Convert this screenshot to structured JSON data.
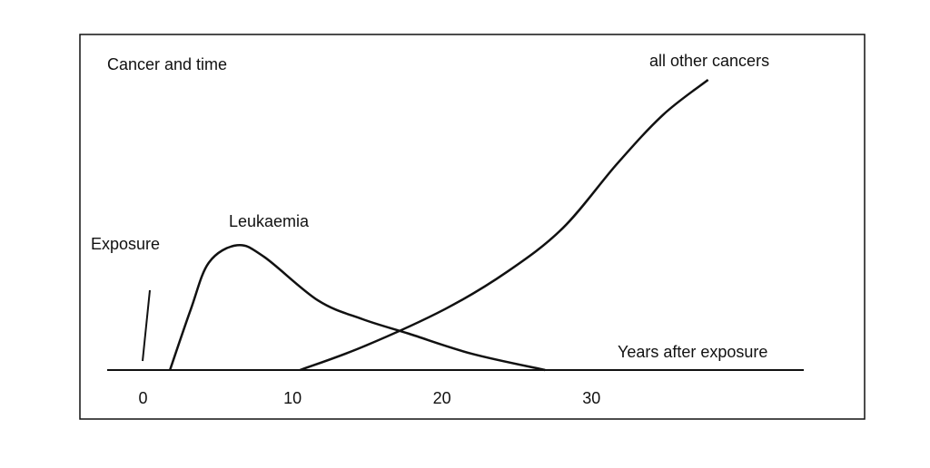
{
  "chart_data": {
    "type": "line",
    "title": "Cancer and time",
    "x_label": "Years after exposure",
    "annotations": [
      "Exposure"
    ],
    "xlim": [
      -2.4,
      44.2
    ],
    "xticks": [
      0,
      10,
      20,
      30
    ],
    "ylim": [
      0,
      100
    ],
    "series": [
      {
        "name": "Leukaemia",
        "color": "#111111",
        "x": [
          1.8,
          3.2,
          4.4,
          6.3,
          8.1,
          11.7,
          14.7,
          17.8,
          22,
          26.9
        ],
        "values": [
          0,
          21,
          37,
          43,
          39,
          24,
          17.5,
          12.5,
          5.6,
          0
        ]
      },
      {
        "name": "all other cancers",
        "color": "#111111",
        "x": [
          10.5,
          14.7,
          20.2,
          24.4,
          28.1,
          31.7,
          34.8,
          37.8
        ],
        "values": [
          0,
          8,
          21,
          34,
          49,
          71,
          88,
          100
        ]
      }
    ]
  }
}
